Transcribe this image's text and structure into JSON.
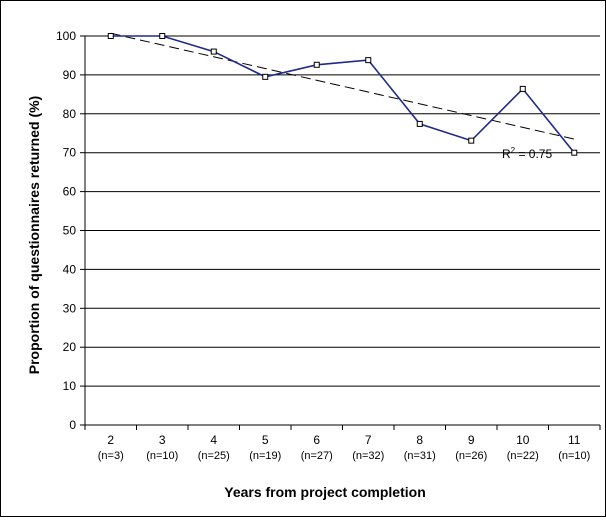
{
  "chart_data": {
    "type": "line",
    "title": "",
    "xlabel": "Years from project completion",
    "ylabel": "Proportion of questionnaires returned (%)",
    "ylim": [
      0,
      100
    ],
    "yticks": [
      "0",
      "10",
      "20",
      "30",
      "40",
      "50",
      "60",
      "70",
      "80",
      "90",
      "100"
    ],
    "categories": [
      "2",
      "3",
      "4",
      "5",
      "6",
      "7",
      "8",
      "9",
      "10",
      "11"
    ],
    "category_sublabels": [
      "(n=3)",
      "(n=10)",
      "(n=25)",
      "(n=19)",
      "(n=27)",
      "(n=32)",
      "(n=31)",
      "(n=26)",
      "(n=22)",
      "(n=10)"
    ],
    "series": [
      {
        "values": [
          100,
          100,
          96,
          89.5,
          92.6,
          93.8,
          77.4,
          73.1,
          86.4,
          70
        ],
        "color": "#1f2a8c",
        "marker": "square"
      }
    ],
    "trendline": {
      "start": 100.7,
      "end": 73.5,
      "style": "dashed",
      "color": "#000000"
    },
    "annotation": {
      "text": "R",
      "superscript": "2",
      "suffix": " = 0.75"
    },
    "grid": true,
    "legend": "none"
  }
}
